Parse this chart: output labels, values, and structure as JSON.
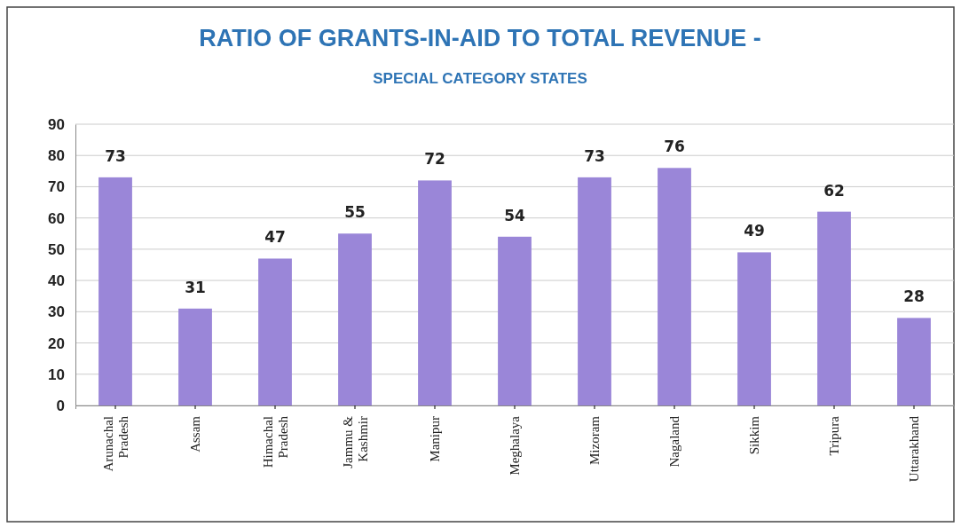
{
  "chart_data": {
    "type": "bar",
    "title": "RATIO OF GRANTS-IN-AID TO TOTAL REVENUE -",
    "subtitle": "SPECIAL CATEGORY STATES",
    "categories": [
      "Arunachal Pradesh",
      "Assam",
      "Himachal Pradesh",
      "Jammu & Kashmir",
      "Manipur",
      "Meghalaya",
      "Mizoram",
      "Nagaland",
      "Sikkim",
      "Tripura",
      "Uttarakhand"
    ],
    "values": [
      73,
      31,
      47,
      55,
      72,
      54,
      73,
      76,
      49,
      62,
      28
    ],
    "color": "#9a86d8",
    "ylim": [
      0,
      90
    ],
    "yticks": [
      0,
      10,
      20,
      30,
      40,
      50,
      60,
      70,
      80,
      90
    ],
    "grid": "y",
    "data_labels": true
  }
}
